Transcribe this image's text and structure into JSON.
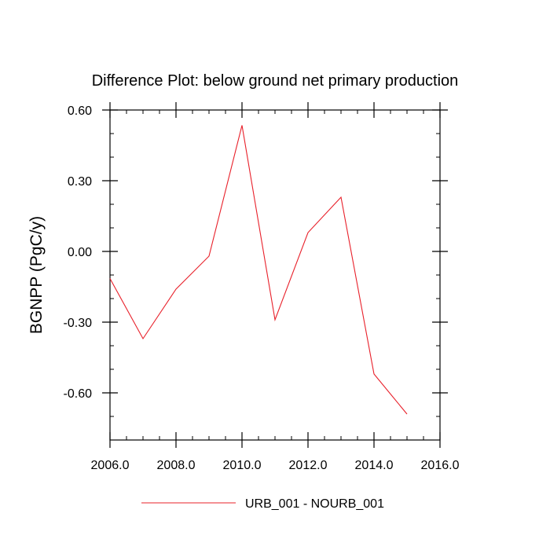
{
  "chart_data": {
    "type": "line",
    "title": "Difference Plot: below ground net primary production",
    "xlabel": "",
    "ylabel": "BGNPP  (PgC/y)",
    "xlim": [
      2006,
      2016
    ],
    "ylim": [
      -0.8,
      0.6
    ],
    "x_ticks": [
      2006,
      2008,
      2010,
      2012,
      2014,
      2016
    ],
    "x_tick_labels": [
      "2006.0",
      "2008.0",
      "2010.0",
      "2012.0",
      "2014.0",
      "2016.0"
    ],
    "y_ticks": [
      0.6,
      0.3,
      0.0,
      -0.3,
      -0.6
    ],
    "y_tick_labels": [
      "0.60",
      "0.30",
      "0.00",
      "-0.30",
      "-0.60"
    ],
    "grid": false,
    "legend_position": "bottom",
    "series": [
      {
        "name": "URB_001 - NOURB_001",
        "color": "#e8202a",
        "x": [
          2006,
          2007,
          2008,
          2009,
          2010,
          2011,
          2012,
          2013,
          2014,
          2015
        ],
        "values": [
          -0.115,
          -0.37,
          -0.16,
          -0.02,
          0.535,
          -0.29,
          0.08,
          0.23,
          -0.52,
          -0.69
        ]
      }
    ]
  }
}
